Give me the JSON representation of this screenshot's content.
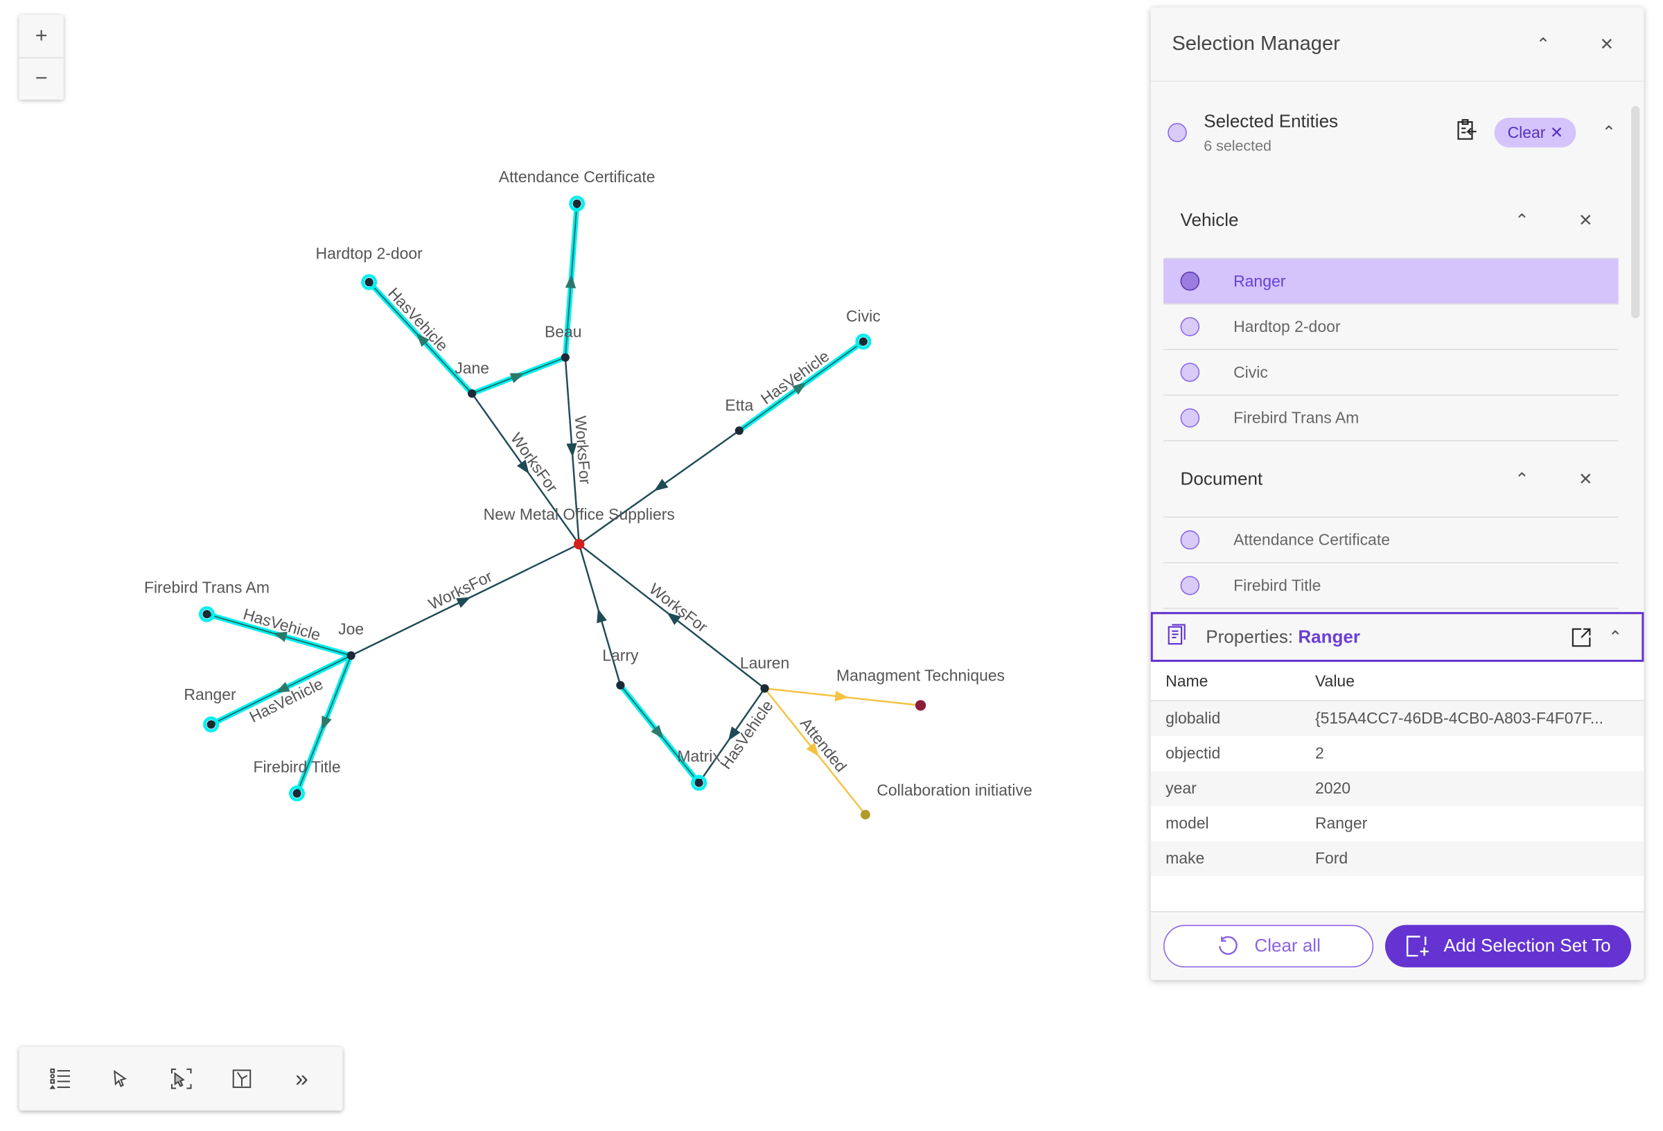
{
  "zoom": {
    "in": "+",
    "out": "−"
  },
  "graph": {
    "colors": {
      "edge": "#1f4b57",
      "selected": "#00f0f0",
      "attended": "#f5c242",
      "center": "#d62020",
      "document": "#8b1c3a",
      "event": "#b09a2a",
      "node": "#1a2a36"
    },
    "nodes": [
      {
        "id": "ac",
        "label": "Attendance Certificate"
      },
      {
        "id": "hd",
        "label": "Hardtop 2-door"
      },
      {
        "id": "beau",
        "label": "Beau"
      },
      {
        "id": "jane",
        "label": "Jane"
      },
      {
        "id": "civic",
        "label": "Civic"
      },
      {
        "id": "etta",
        "label": "Etta"
      },
      {
        "id": "nmos",
        "label": "New Metal Office Suppliers"
      },
      {
        "id": "fta",
        "label": "Firebird Trans Am"
      },
      {
        "id": "joe",
        "label": "Joe"
      },
      {
        "id": "ranger",
        "label": "Ranger"
      },
      {
        "id": "ft",
        "label": "Firebird Title"
      },
      {
        "id": "larry",
        "label": "Larry"
      },
      {
        "id": "lauren",
        "label": "Lauren"
      },
      {
        "id": "matrix",
        "label": "Matrix"
      },
      {
        "id": "mt",
        "label": "Managment Techniques"
      },
      {
        "id": "ci",
        "label": "Collaboration initiative"
      }
    ],
    "edges": [
      {
        "from": "beau",
        "to": "ac",
        "label": "",
        "type": "selected"
      },
      {
        "from": "jane",
        "to": "hd",
        "label": "HasVehicle",
        "type": "selected"
      },
      {
        "from": "jane",
        "to": "beau",
        "label": "",
        "type": "selected"
      },
      {
        "from": "jane",
        "to": "nmos",
        "label": "WorksFor",
        "type": "edge"
      },
      {
        "from": "beau",
        "to": "nmos",
        "label": "WorksFor",
        "type": "edge"
      },
      {
        "from": "etta",
        "to": "civic",
        "label": "HasVehicle",
        "type": "selected"
      },
      {
        "from": "etta",
        "to": "nmos",
        "label": "",
        "type": "edge"
      },
      {
        "from": "joe",
        "to": "nmos",
        "label": "WorksFor",
        "type": "edge"
      },
      {
        "from": "joe",
        "to": "fta",
        "label": "HasVehicle",
        "type": "selected"
      },
      {
        "from": "joe",
        "to": "ranger",
        "label": "HasVehicle",
        "type": "selected"
      },
      {
        "from": "joe",
        "to": "ft",
        "label": "",
        "type": "selected"
      },
      {
        "from": "larry",
        "to": "nmos",
        "label": "",
        "type": "edge"
      },
      {
        "from": "lauren",
        "to": "nmos",
        "label": "WorksFor",
        "type": "edge"
      },
      {
        "from": "larry",
        "to": "matrix",
        "label": "",
        "type": "selected"
      },
      {
        "from": "lauren",
        "to": "matrix",
        "label": "HasVehicle",
        "type": "edge"
      },
      {
        "from": "lauren",
        "to": "mt",
        "label": "",
        "type": "attended"
      },
      {
        "from": "lauren",
        "to": "ci",
        "label": "Attended",
        "type": "attended"
      }
    ]
  },
  "toolbar": {
    "icons": [
      "legend-list-icon",
      "select-pointer-icon",
      "lasso-select-icon",
      "layout-icon",
      "expand-chevrons-icon"
    ],
    "more": "»"
  },
  "panel": {
    "title": "Selection Manager",
    "selected": {
      "title": "Selected Entities",
      "count": "6 selected",
      "clear": "Clear"
    },
    "groups": [
      {
        "name": "Vehicle",
        "items": [
          "Ranger",
          "Hardtop 2-door",
          "Civic",
          "Firebird Trans Am"
        ],
        "active": 0
      },
      {
        "name": "Document",
        "items": [
          "Attendance Certificate",
          "Firebird Title"
        ],
        "active": -1
      }
    ],
    "properties": {
      "prefix": "Properties: ",
      "entity": "Ranger",
      "headers": [
        "Name",
        "Value"
      ],
      "rows": [
        [
          "globalid",
          "{515A4CC7-46DB-4CB0-A803-F4F07F..."
        ],
        [
          "objectid",
          "2"
        ],
        [
          "year",
          "2020"
        ],
        [
          "model",
          "Ranger"
        ],
        [
          "make",
          "Ford"
        ]
      ]
    },
    "footer": {
      "clear_all": "Clear all",
      "add_set": "Add Selection Set To"
    },
    "accent": "#6433d1",
    "highlight": "#d4c4fb"
  }
}
